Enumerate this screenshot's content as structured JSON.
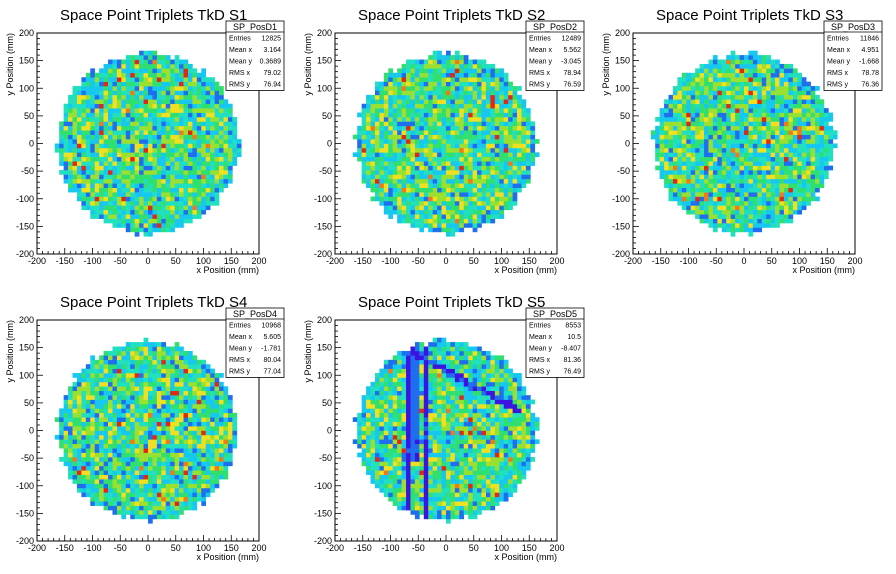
{
  "chart_data": [
    {
      "type": "heatmap",
      "title": "Space Point Triplets TkD S1",
      "xlabel": "x Position (mm)",
      "ylabel": "y Position (mm)",
      "xlim": [
        -200,
        200
      ],
      "ylim": [
        -200,
        200
      ],
      "xticks": [
        -200,
        -150,
        -100,
        -50,
        0,
        50,
        100,
        150,
        200
      ],
      "yticks": [
        -200,
        -150,
        -100,
        -50,
        0,
        50,
        100,
        150,
        200
      ],
      "distribution": "filled disk, radius ~160 mm",
      "stats": {
        "name": "SP_PosD1",
        "rows": [
          {
            "label": "Entries",
            "value": "12825"
          },
          {
            "label": "Mean x",
            "value": "3.164"
          },
          {
            "label": "Mean y",
            "value": "0.3689"
          },
          {
            "label": "RMS x",
            "value": "79.02"
          },
          {
            "label": "RMS y",
            "value": "76.94"
          }
        ]
      }
    },
    {
      "type": "heatmap",
      "title": "Space Point Triplets TkD S2",
      "xlabel": "x Position (mm)",
      "ylabel": "y Position (mm)",
      "xlim": [
        -200,
        200
      ],
      "ylim": [
        -200,
        200
      ],
      "xticks": [
        -200,
        -150,
        -100,
        -50,
        0,
        50,
        100,
        150,
        200
      ],
      "yticks": [
        -200,
        -150,
        -100,
        -50,
        0,
        50,
        100,
        150,
        200
      ],
      "distribution": "filled disk, radius ~160 mm",
      "stats": {
        "name": "SP_PosD2",
        "rows": [
          {
            "label": "Entries",
            "value": "12489"
          },
          {
            "label": "Mean x",
            "value": "5.562"
          },
          {
            "label": "Mean y",
            "value": "-3.045"
          },
          {
            "label": "RMS x",
            "value": "78.94"
          },
          {
            "label": "RMS y",
            "value": "76.59"
          }
        ]
      }
    },
    {
      "type": "heatmap",
      "title": "Space Point Triplets TkD S3",
      "xlabel": "x Position (mm)",
      "ylabel": "y Position (mm)",
      "xlim": [
        -200,
        200
      ],
      "ylim": [
        -200,
        200
      ],
      "xticks": [
        -200,
        -150,
        -100,
        -50,
        0,
        50,
        100,
        150,
        200
      ],
      "yticks": [
        -200,
        -150,
        -100,
        -50,
        0,
        50,
        100,
        150,
        200
      ],
      "distribution": "filled disk, radius ~160 mm",
      "stats": {
        "name": "SP_PosD3",
        "rows": [
          {
            "label": "Entries",
            "value": "11846"
          },
          {
            "label": "Mean x",
            "value": "4.951"
          },
          {
            "label": "Mean y",
            "value": "-1.668"
          },
          {
            "label": "RMS x",
            "value": "78.78"
          },
          {
            "label": "RMS y",
            "value": "76.36"
          }
        ]
      }
    },
    {
      "type": "heatmap",
      "title": "Space Point Triplets TkD S4",
      "xlabel": "x Position (mm)",
      "ylabel": "y Position (mm)",
      "xlim": [
        -200,
        200
      ],
      "ylim": [
        -200,
        200
      ],
      "xticks": [
        -200,
        -150,
        -100,
        -50,
        0,
        50,
        100,
        150,
        200
      ],
      "yticks": [
        -200,
        -150,
        -100,
        -50,
        0,
        50,
        100,
        150,
        200
      ],
      "distribution": "filled disk, radius ~160 mm",
      "stats": {
        "name": "SP_PosD4",
        "rows": [
          {
            "label": "Entries",
            "value": "10968"
          },
          {
            "label": "Mean x",
            "value": "5.605"
          },
          {
            "label": "Mean y",
            "value": "-1.781"
          },
          {
            "label": "RMS x",
            "value": "80.04"
          },
          {
            "label": "RMS y",
            "value": "77.04"
          }
        ]
      }
    },
    {
      "type": "heatmap",
      "title": "Space Point Triplets TkD S5",
      "xlabel": "x Position (mm)",
      "ylabel": "y Position (mm)",
      "xlim": [
        -200,
        200
      ],
      "ylim": [
        -200,
        200
      ],
      "xticks": [
        -200,
        -150,
        -100,
        -50,
        0,
        50,
        100,
        150,
        200
      ],
      "yticks": [
        -200,
        -150,
        -100,
        -50,
        0,
        50,
        100,
        150,
        200
      ],
      "distribution": "filled disk, radius ~160 mm, with low-occupancy (dead) vertical and diagonal strips",
      "stats": {
        "name": "SP_PosD5",
        "rows": [
          {
            "label": "Entries",
            "value": "8553"
          },
          {
            "label": "Mean x",
            "value": "10.5"
          },
          {
            "label": "Mean y",
            "value": "-8.407"
          },
          {
            "label": "RMS x",
            "value": "81.36"
          },
          {
            "label": "RMS y",
            "value": "76.49"
          }
        ]
      }
    }
  ],
  "colors": {
    "palette": [
      "#3c14e0",
      "#1f6ef0",
      "#16c8f0",
      "#20e0c0",
      "#2fe070",
      "#9ae030",
      "#f0e020",
      "#f07a18",
      "#e02814"
    ]
  }
}
